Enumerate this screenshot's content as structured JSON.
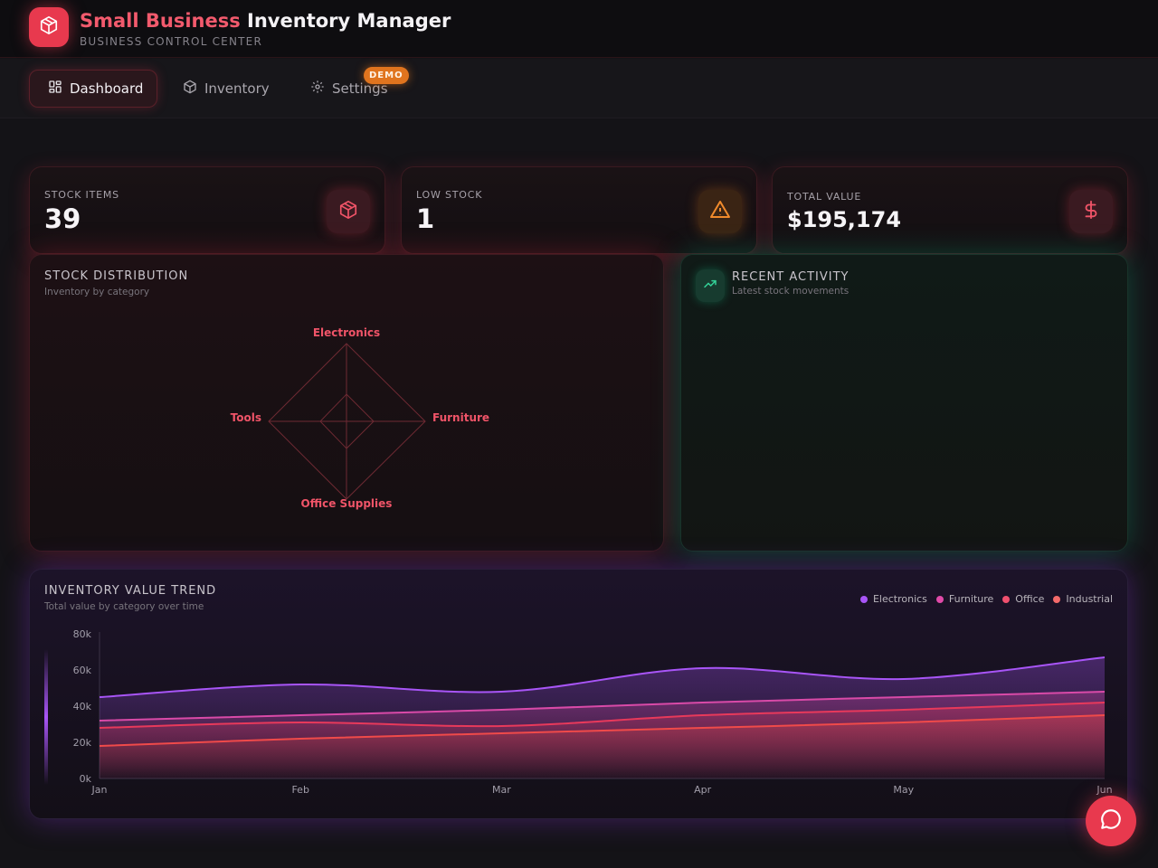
{
  "header": {
    "title_accent": "Small Business",
    "title_rest": "Inventory Manager",
    "subtitle": "BUSINESS CONTROL CENTER",
    "logo_icon": "box-icon"
  },
  "nav": {
    "tabs": [
      {
        "label": "Dashboard",
        "icon": "dashboard-icon",
        "active": true
      },
      {
        "label": "Inventory",
        "icon": "box-icon",
        "active": false
      },
      {
        "label": "Settings",
        "icon": "gear-icon",
        "active": false
      }
    ],
    "badge": "DEMO"
  },
  "stats": [
    {
      "label": "STOCK ITEMS",
      "value": "39",
      "icon": "box-icon",
      "color": "#e8394e"
    },
    {
      "label": "LOW STOCK",
      "value": "1",
      "icon": "warning-icon",
      "color": "#e0741e"
    },
    {
      "label": "TOTAL VALUE",
      "value": "$195,174",
      "icon": "dollar-icon",
      "color": "#e8394e"
    }
  ],
  "distribution": {
    "title": "STOCK DISTRIBUTION",
    "subtitle": "Inventory by category",
    "axes": [
      "Electronics",
      "Furniture",
      "Office Supplies",
      "Tools"
    ]
  },
  "activity": {
    "title": "RECENT ACTIVITY",
    "subtitle": "Latest stock movements",
    "icon": "trending-up-icon"
  },
  "trend": {
    "title": "INVENTORY VALUE TREND",
    "subtitle": "Total value by category over time"
  },
  "chart_data": {
    "type": "area",
    "title": "INVENTORY VALUE TREND",
    "subtitle": "Total value by category over time",
    "categories": [
      "Jan",
      "Feb",
      "Mar",
      "Apr",
      "May",
      "Jun"
    ],
    "y_ticks": [
      "0k",
      "20k",
      "40k",
      "60k",
      "80k"
    ],
    "ylim": [
      0,
      80000
    ],
    "legend": "top-right",
    "series": [
      {
        "name": "Electronics",
        "color": "#a855f7",
        "values": [
          45000,
          52000,
          48000,
          61000,
          55000,
          67000
        ]
      },
      {
        "name": "Furniture",
        "color": "#d94aa8",
        "values": [
          32000,
          35000,
          38000,
          42000,
          45000,
          48000
        ]
      },
      {
        "name": "Office",
        "color": "#e8395b",
        "values": [
          28000,
          31000,
          29000,
          35000,
          38000,
          42000
        ]
      },
      {
        "name": "Industrial",
        "color": "#f04a4a",
        "values": [
          18000,
          22000,
          25000,
          28000,
          31000,
          35000
        ]
      }
    ]
  },
  "chat": {
    "icon": "chat-icon"
  }
}
